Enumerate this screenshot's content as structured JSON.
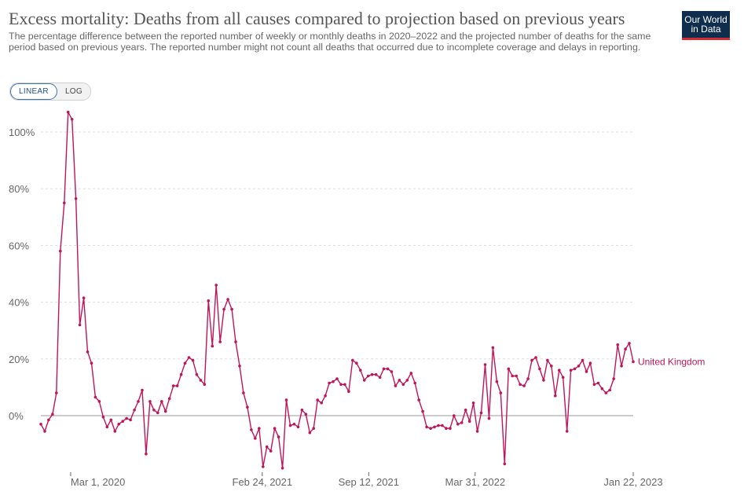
{
  "header": {
    "title": "Excess mortality: Deaths from all causes compared to projection based on previous years",
    "subtitle": "The percentage difference between the reported number of weekly or monthly deaths in 2020–2022 and the projected number of deaths for the same period based on previous years. The reported number might not count all deaths that occurred due to incomplete coverage and delays in reporting."
  },
  "logo": {
    "line1": "Our World",
    "line2": "in Data"
  },
  "scale_toggle": {
    "linear_label": "LINEAR",
    "log_label": "LOG",
    "selected": "LINEAR"
  },
  "colors": {
    "series": "#c0155a",
    "grid": "#dddddd",
    "zero_line": "#999999",
    "logo_bg": "#0f2e4e",
    "logo_accent": "#d42b35"
  },
  "chart_data": {
    "type": "line",
    "title": "Excess mortality: Deaths from all causes compared to projection based on previous years",
    "ylabel": "",
    "xlabel": "",
    "y_unit": "%",
    "ylim": [
      -18,
      110
    ],
    "y_ticks": [
      0,
      20,
      40,
      60,
      80,
      100
    ],
    "y_tick_labels": [
      "0%",
      "20%",
      "40%",
      "60%",
      "80%",
      "100%"
    ],
    "x_range": [
      "2020-01-05",
      "2023-01-22"
    ],
    "x_tick_labels": [
      "Mar 1, 2020",
      "Feb 24, 2021",
      "Sep 12, 2021",
      "Mar 31, 2022",
      "Jan 22, 2023"
    ],
    "x_tick_dates": [
      "2020-03-01",
      "2021-02-24",
      "2021-09-12",
      "2022-03-31",
      "2023-01-22"
    ],
    "grid": "horizontal dashed",
    "legend": "inline label at line end",
    "series": [
      {
        "name": "United Kingdom",
        "values": [
          -3,
          -5.5,
          -1.5,
          0.5,
          8,
          58,
          75,
          107,
          104.5,
          76.5,
          32,
          41.5,
          22.5,
          18.5,
          6.5,
          5,
          -0.5,
          -4,
          -1.5,
          -5.5,
          -3,
          -2,
          -1,
          -1.5,
          2,
          5,
          9,
          -13.5,
          5,
          2,
          1,
          5,
          1.5,
          6,
          10.5,
          10.5,
          14.5,
          18.5,
          20.5,
          19.5,
          14.5,
          12.5,
          11,
          40.5,
          24.5,
          46,
          26,
          37.5,
          41,
          37.5,
          26,
          17.5,
          8,
          3,
          -5,
          -8,
          -4.5,
          -18,
          -11,
          -12.5,
          -4.5,
          -7.5,
          -18.5,
          5.5,
          -3.5,
          -3,
          -4,
          2,
          0.5,
          -6,
          -4.5,
          5.5,
          4.5,
          7,
          11.5,
          12,
          13,
          11,
          11,
          8.5,
          19.5,
          18.5,
          16,
          12.5,
          14,
          14.5,
          14.5,
          13.5,
          16.5,
          16.5,
          15.5,
          10.5,
          12.5,
          11,
          12.5,
          15,
          11.5,
          5.5,
          1.5,
          -4,
          -4.5,
          -4,
          -3.5,
          -3.5,
          -4.5,
          -4.5,
          0,
          -3,
          -2.5,
          2,
          -2,
          4.5,
          -5.5,
          1,
          18,
          -1,
          24,
          12,
          8,
          -17,
          16.5,
          14,
          14,
          11,
          10.5,
          13,
          19.5,
          20.5,
          16.5,
          12.5,
          19.5,
          17.5,
          7,
          16,
          13.5,
          -5.5,
          16,
          16.5,
          17.5,
          19.5,
          15.5,
          18.5,
          11,
          11.5,
          9.5,
          8,
          9,
          13,
          25,
          17.5,
          23.5,
          25.5,
          19
        ]
      }
    ]
  }
}
